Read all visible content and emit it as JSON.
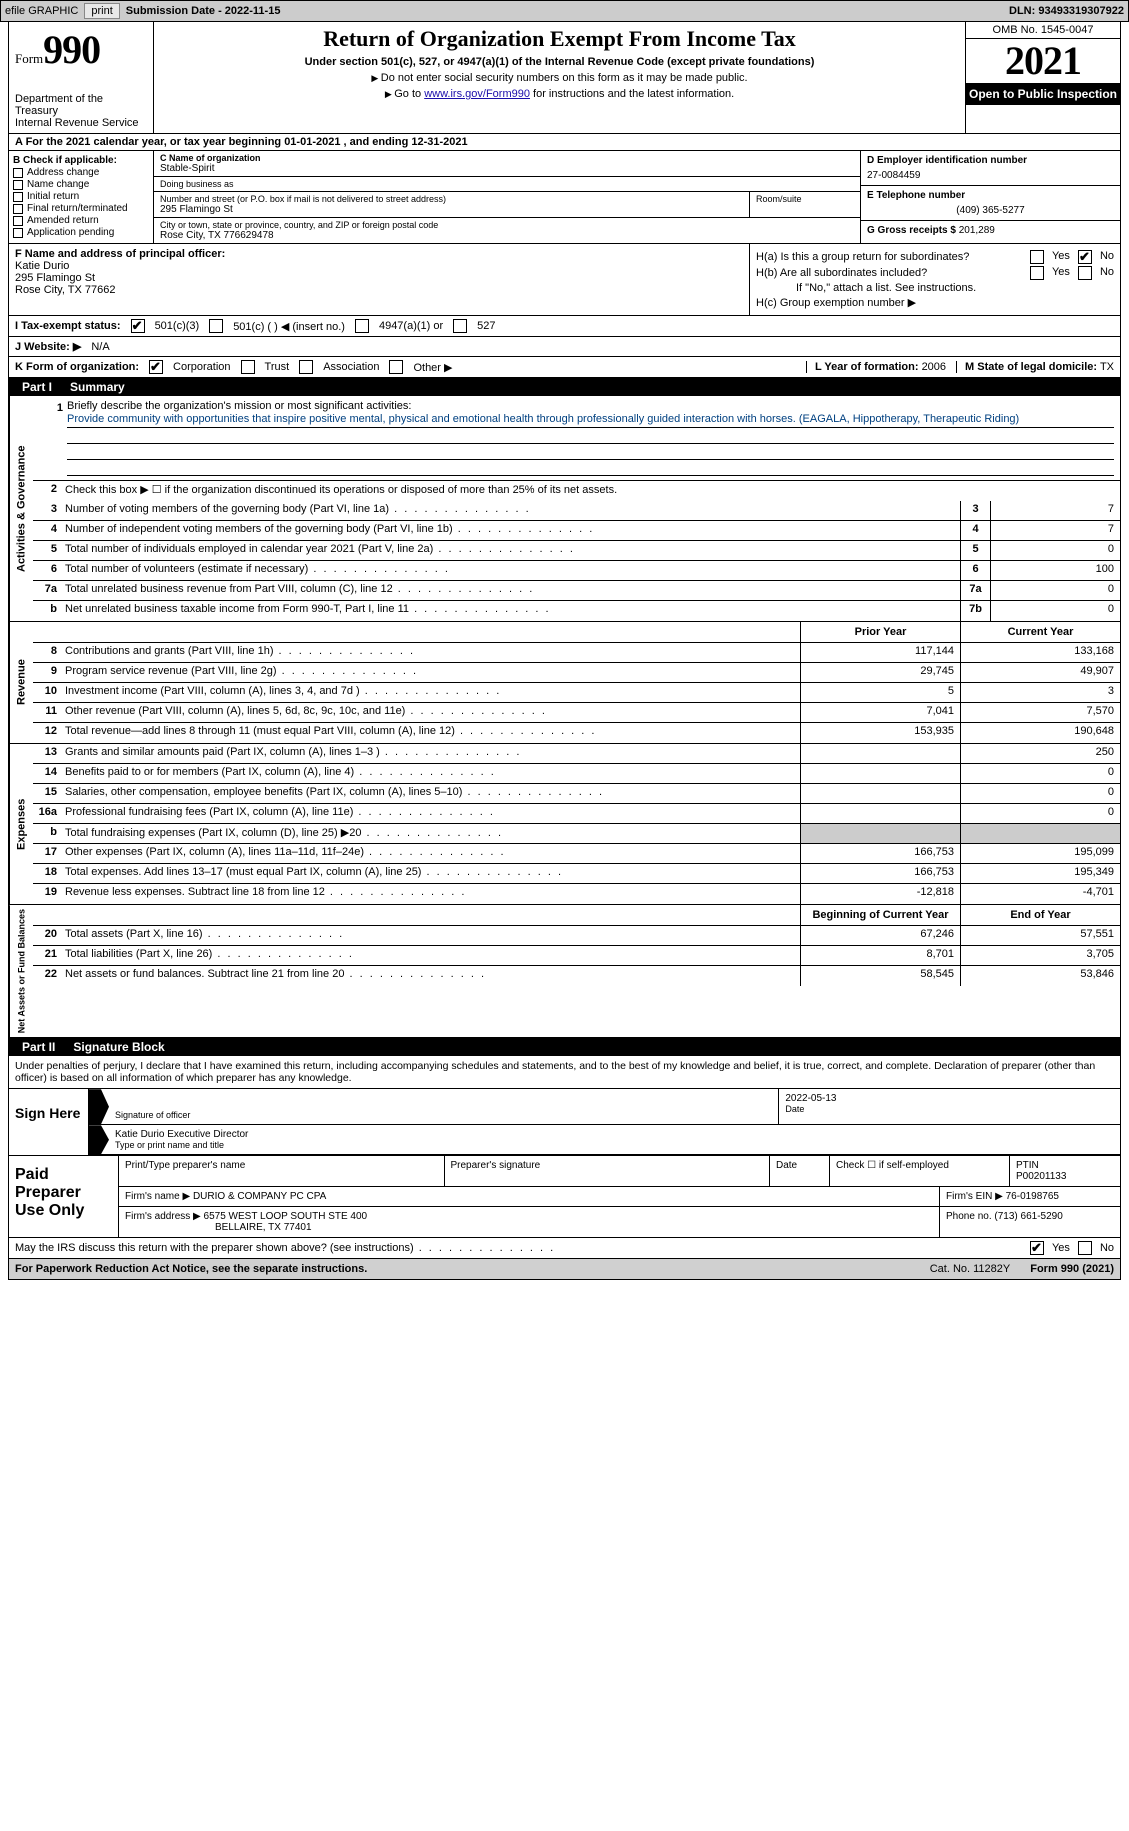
{
  "topbar": {
    "efile_label": "efile GRAPHIC",
    "print_btn": "print",
    "sub_date_label": "Submission Date - 2022-11-15",
    "dln_label": "DLN: 93493319307922"
  },
  "header": {
    "form_word": "Form",
    "form_num": "990",
    "dept": "Department of the Treasury",
    "irs": "Internal Revenue Service",
    "title": "Return of Organization Exempt From Income Tax",
    "sub": "Under section 501(c), 527, or 4947(a)(1) of the Internal Revenue Code (except private foundations)",
    "line1": "Do not enter social security numbers on this form as it may be made public.",
    "line2_pre": "Go to ",
    "line2_link": "www.irs.gov/Form990",
    "line2_post": " for instructions and the latest information.",
    "omb": "OMB No. 1545-0047",
    "year": "2021",
    "open_pub": "Open to Public Inspection"
  },
  "rowA": "A For the 2021 calendar year, or tax year beginning 01-01-2021    , and ending 12-31-2021",
  "colB": {
    "label": "B Check if applicable:",
    "opts": [
      "Address change",
      "Name change",
      "Initial return",
      "Final return/terminated",
      "Amended return",
      "Application pending"
    ]
  },
  "colC": {
    "name_lbl": "C Name of organization",
    "name": "Stable-Spirit",
    "dba_lbl": "Doing business as",
    "dba": "",
    "addr_lbl": "Number and street (or P.O. box if mail is not delivered to street address)",
    "room_lbl": "Room/suite",
    "addr": "295 Flamingo St",
    "city_lbl": "City or town, state or province, country, and ZIP or foreign postal code",
    "city": "Rose City, TX  776629478"
  },
  "colD": {
    "ein_lbl": "D Employer identification number",
    "ein": "27-0084459",
    "tel_lbl": "E Telephone number",
    "tel": "(409) 365-5277",
    "gross_lbl": "G Gross receipts $",
    "gross": "201,289"
  },
  "rowF": {
    "label": "F Name and address of principal officer:",
    "name": "Katie Durio",
    "addr1": "295 Flamingo St",
    "addr2": "Rose City, TX  77662"
  },
  "rowH": {
    "ha": "H(a)  Is this a group return for subordinates?",
    "hb": "H(b)  Are all subordinates included?",
    "hb_note": "If \"No,\" attach a list. See instructions.",
    "hc": "H(c)  Group exemption number ▶",
    "yes": "Yes",
    "no": "No"
  },
  "rowI": {
    "label": "I   Tax-exempt status:",
    "o1": "501(c)(3)",
    "o2": "501(c) (  ) ◀ (insert no.)",
    "o3": "4947(a)(1) or",
    "o4": "527"
  },
  "rowJ": {
    "label": "J   Website: ▶",
    "val": "N/A"
  },
  "rowK": {
    "label": "K Form of organization:",
    "o1": "Corporation",
    "o2": "Trust",
    "o3": "Association",
    "o4": "Other ▶",
    "l_label": "L Year of formation:",
    "l_val": "2006",
    "m_label": "M State of legal domicile:",
    "m_val": "TX"
  },
  "part1": {
    "num": "Part I",
    "title": "Summary"
  },
  "mission": {
    "q": "Briefly describe the organization's mission or most significant activities:",
    "text": "Provide community with opportunities that inspire positive mental, physical and emotional health through professionally guided interaction with horses. (EAGALA, Hippotherapy, Therapeutic Riding)"
  },
  "summary": {
    "side1": "Activities & Governance",
    "side2": "Revenue",
    "side3": "Expenses",
    "side4": "Net Assets or Fund Balances",
    "line2": "Check this box ▶ ☐ if the organization discontinued its operations or disposed of more than 25% of its net assets.",
    "rows_ag": [
      {
        "n": "3",
        "t": "Number of voting members of the governing body (Part VI, line 1a)",
        "box": "3",
        "v": "7"
      },
      {
        "n": "4",
        "t": "Number of independent voting members of the governing body (Part VI, line 1b)",
        "box": "4",
        "v": "7"
      },
      {
        "n": "5",
        "t": "Total number of individuals employed in calendar year 2021 (Part V, line 2a)",
        "box": "5",
        "v": "0"
      },
      {
        "n": "6",
        "t": "Total number of volunteers (estimate if necessary)",
        "box": "6",
        "v": "100"
      },
      {
        "n": "7a",
        "t": "Total unrelated business revenue from Part VIII, column (C), line 12",
        "box": "7a",
        "v": "0"
      },
      {
        "n": "b",
        "t": "Net unrelated business taxable income from Form 990-T, Part I, line 11",
        "box": "7b",
        "v": "0"
      }
    ],
    "hdr_prior": "Prior Year",
    "hdr_curr": "Current Year",
    "rows_rev": [
      {
        "n": "8",
        "t": "Contributions and grants (Part VIII, line 1h)",
        "p": "117,144",
        "c": "133,168"
      },
      {
        "n": "9",
        "t": "Program service revenue (Part VIII, line 2g)",
        "p": "29,745",
        "c": "49,907"
      },
      {
        "n": "10",
        "t": "Investment income (Part VIII, column (A), lines 3, 4, and 7d )",
        "p": "5",
        "c": "3"
      },
      {
        "n": "11",
        "t": "Other revenue (Part VIII, column (A), lines 5, 6d, 8c, 9c, 10c, and 11e)",
        "p": "7,041",
        "c": "7,570"
      },
      {
        "n": "12",
        "t": "Total revenue—add lines 8 through 11 (must equal Part VIII, column (A), line 12)",
        "p": "153,935",
        "c": "190,648"
      }
    ],
    "rows_exp": [
      {
        "n": "13",
        "t": "Grants and similar amounts paid (Part IX, column (A), lines 1–3 )",
        "p": "",
        "c": "250"
      },
      {
        "n": "14",
        "t": "Benefits paid to or for members (Part IX, column (A), line 4)",
        "p": "",
        "c": "0"
      },
      {
        "n": "15",
        "t": "Salaries, other compensation, employee benefits (Part IX, column (A), lines 5–10)",
        "p": "",
        "c": "0"
      },
      {
        "n": "16a",
        "t": "Professional fundraising fees (Part IX, column (A), line 11e)",
        "p": "",
        "c": "0"
      },
      {
        "n": "b",
        "t": "Total fundraising expenses (Part IX, column (D), line 25) ▶20",
        "p": "shaded",
        "c": "shaded"
      },
      {
        "n": "17",
        "t": "Other expenses (Part IX, column (A), lines 11a–11d, 11f–24e)",
        "p": "166,753",
        "c": "195,099"
      },
      {
        "n": "18",
        "t": "Total expenses. Add lines 13–17 (must equal Part IX, column (A), line 25)",
        "p": "166,753",
        "c": "195,349"
      },
      {
        "n": "19",
        "t": "Revenue less expenses. Subtract line 18 from line 12",
        "p": "-12,818",
        "c": "-4,701"
      }
    ],
    "hdr_beg": "Beginning of Current Year",
    "hdr_end": "End of Year",
    "rows_net": [
      {
        "n": "20",
        "t": "Total assets (Part X, line 16)",
        "p": "67,246",
        "c": "57,551"
      },
      {
        "n": "21",
        "t": "Total liabilities (Part X, line 26)",
        "p": "8,701",
        "c": "3,705"
      },
      {
        "n": "22",
        "t": "Net assets or fund balances. Subtract line 21 from line 20",
        "p": "58,545",
        "c": "53,846"
      }
    ]
  },
  "part2": {
    "num": "Part II",
    "title": "Signature Block"
  },
  "sig": {
    "penalty": "Under penalties of perjury, I declare that I have examined this return, including accompanying schedules and statements, and to the best of my knowledge and belief, it is true, correct, and complete. Declaration of preparer (other than officer) is based on all information of which preparer has any knowledge.",
    "sign_here": "Sign Here",
    "sig_officer": "Signature of officer",
    "sig_date": "2022-05-13",
    "date_lbl": "Date",
    "name_title": "Katie Durio  Executive Director",
    "name_lbl": "Type or print name and title"
  },
  "paid": {
    "label": "Paid Preparer Use Only",
    "h1": "Print/Type preparer's name",
    "h2": "Preparer's signature",
    "h3": "Date",
    "h4_chk": "Check ☐ if self-employed",
    "h5": "PTIN",
    "ptin": "P00201133",
    "firm_name_lbl": "Firm's name    ▶",
    "firm_name": "DURIO & COMPANY PC CPA",
    "firm_ein_lbl": "Firm's EIN ▶",
    "firm_ein": "76-0198765",
    "firm_addr_lbl": "Firm's address ▶",
    "firm_addr1": "6575 WEST LOOP SOUTH STE 400",
    "firm_addr2": "BELLAIRE, TX  77401",
    "phone_lbl": "Phone no.",
    "phone": "(713) 661-5290"
  },
  "discuss": {
    "q": "May the IRS discuss this return with the preparer shown above? (see instructions)",
    "yes": "Yes",
    "no": "No"
  },
  "footer": {
    "left": "For Paperwork Reduction Act Notice, see the separate instructions.",
    "mid": "Cat. No. 11282Y",
    "right": "Form 990 (2021)"
  }
}
